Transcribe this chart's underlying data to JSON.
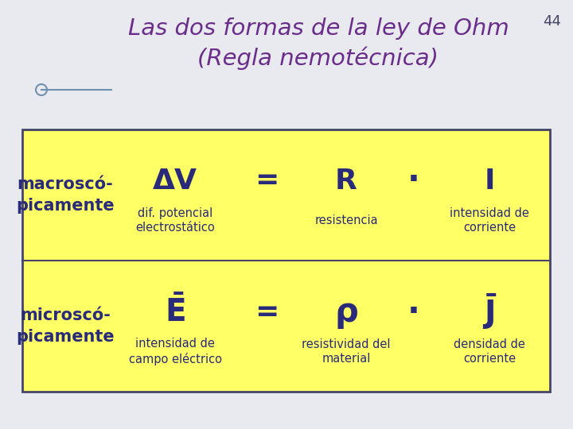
{
  "slide_bg": "#e8eaf0",
  "slide_num": "44",
  "title_line1": "Las dos formas de la ley de Ohm",
  "title_line2": "(Regla nemotécnica)",
  "title_color": "#6b2d8b",
  "slide_num_color": "#444466",
  "table_bg": "#ffff66",
  "table_border": "#444466",
  "text_color": "#2a2a7a",
  "row1_label": "macroscó-\npicamente",
  "row2_label": "microscó-\npicamente",
  "row1_main_sym": "ΔV",
  "row1_main_sub": "dif. potencial\nelectrostático",
  "row1_eq": "=",
  "row1_r_sym": "R",
  "row1_r_sub": "resistencia",
  "row1_dot": "·",
  "row1_i_sym": "I",
  "row1_i_sub": "intensidad de\ncorriente",
  "row2_main_sym": "E",
  "row2_main_sub": "intensidad de\ncampo eléctrico",
  "row2_eq": "=",
  "row2_r_sym": "ρ",
  "row2_r_sub": "resistividad del\nmaterial",
  "row2_dot": "·",
  "row2_i_sym": "J",
  "row2_i_sub": "densidad de\ncorriente",
  "label_fontsize": 15,
  "sym_fontsize": 26,
  "sub_fontsize": 10.5,
  "eq_fontsize": 26,
  "title_fontsize": 21,
  "slide_num_fontsize": 13
}
